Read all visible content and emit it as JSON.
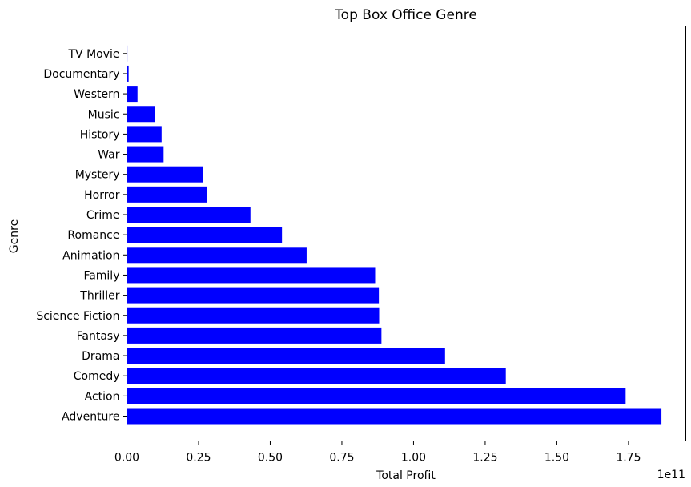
{
  "chart_data": {
    "type": "bar",
    "orientation": "horizontal",
    "title": "Top Box Office Genre",
    "xlabel": "Total Profit",
    "ylabel": "Genre",
    "x_offset_text": "1e11",
    "xlim": [
      0,
      1.95
    ],
    "x_ticks": [
      0.0,
      0.25,
      0.5,
      0.75,
      1.0,
      1.25,
      1.5,
      1.75
    ],
    "x_tick_labels": [
      "0.00",
      "0.25",
      "0.50",
      "0.75",
      "1.00",
      "1.25",
      "1.50",
      "1.75"
    ],
    "bar_color": "#0000ff",
    "grid": false,
    "categories": [
      "Adventure",
      "Action",
      "Comedy",
      "Drama",
      "Fantasy",
      "Science Fiction",
      "Thriller",
      "Family",
      "Animation",
      "Romance",
      "Crime",
      "Horror",
      "Mystery",
      "War",
      "History",
      "Music",
      "Western",
      "Documentary",
      "TV Movie"
    ],
    "values": [
      1.865,
      1.74,
      1.322,
      1.11,
      0.888,
      0.88,
      0.879,
      0.866,
      0.627,
      0.541,
      0.431,
      0.278,
      0.265,
      0.128,
      0.121,
      0.097,
      0.037,
      0.006,
      0.001
    ]
  }
}
